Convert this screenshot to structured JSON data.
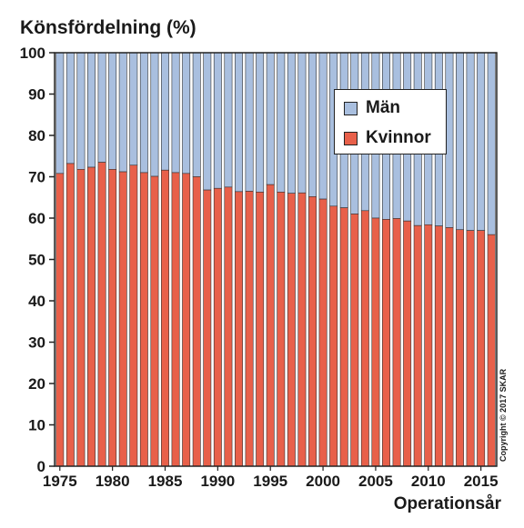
{
  "chart_data": {
    "type": "bar",
    "stacked": true,
    "title": "Könsfördelning (%)",
    "xlabel": "Operationsår",
    "ylabel": "",
    "ylim": [
      0,
      100
    ],
    "yticks": [
      0,
      10,
      20,
      30,
      40,
      50,
      60,
      70,
      80,
      90,
      100
    ],
    "xtick_labels": [
      "1975",
      "1980",
      "1985",
      "1990",
      "1995",
      "2000",
      "2005",
      "2010",
      "2015"
    ],
    "categories": [
      1975,
      1976,
      1977,
      1978,
      1979,
      1980,
      1981,
      1982,
      1983,
      1984,
      1985,
      1986,
      1987,
      1988,
      1989,
      1990,
      1991,
      1992,
      1993,
      1994,
      1995,
      1996,
      1997,
      1998,
      1999,
      2000,
      2001,
      2002,
      2003,
      2004,
      2005,
      2006,
      2007,
      2008,
      2009,
      2010,
      2011,
      2012,
      2013,
      2014,
      2015,
      2016
    ],
    "series": [
      {
        "name": "Kvinnor",
        "color": "#e8604a",
        "values": [
          70.8,
          73.2,
          71.8,
          72.3,
          73.5,
          71.8,
          71.2,
          72.8,
          71.0,
          70.1,
          71.6,
          71.0,
          70.8,
          70.0,
          66.8,
          67.2,
          67.5,
          66.4,
          66.5,
          66.3,
          68.1,
          66.3,
          66.0,
          66.1,
          65.2,
          64.6,
          62.9,
          62.5,
          61.0,
          61.8,
          60.0,
          59.7,
          59.9,
          59.3,
          58.2,
          58.4,
          58.1,
          57.7,
          57.2,
          57.0,
          57.0,
          56.0
        ]
      },
      {
        "name": "Män",
        "color": "#a9bfdf",
        "values": [
          29.2,
          26.8,
          28.2,
          27.7,
          26.5,
          28.2,
          28.8,
          27.2,
          29.0,
          29.9,
          28.4,
          29.0,
          29.2,
          30.0,
          33.2,
          32.8,
          32.5,
          33.6,
          33.5,
          33.7,
          31.9,
          33.7,
          34.0,
          33.9,
          34.8,
          35.4,
          37.1,
          37.5,
          39.0,
          38.2,
          40.0,
          40.3,
          40.1,
          40.7,
          41.8,
          41.6,
          41.9,
          42.3,
          42.8,
          43.0,
          43.0,
          44.0
        ]
      }
    ],
    "legend": {
      "position": "top-right",
      "entries": [
        "Män",
        "Kvinnor"
      ]
    },
    "annotation": "Copyright © 2017 SKAR",
    "grid": false
  }
}
